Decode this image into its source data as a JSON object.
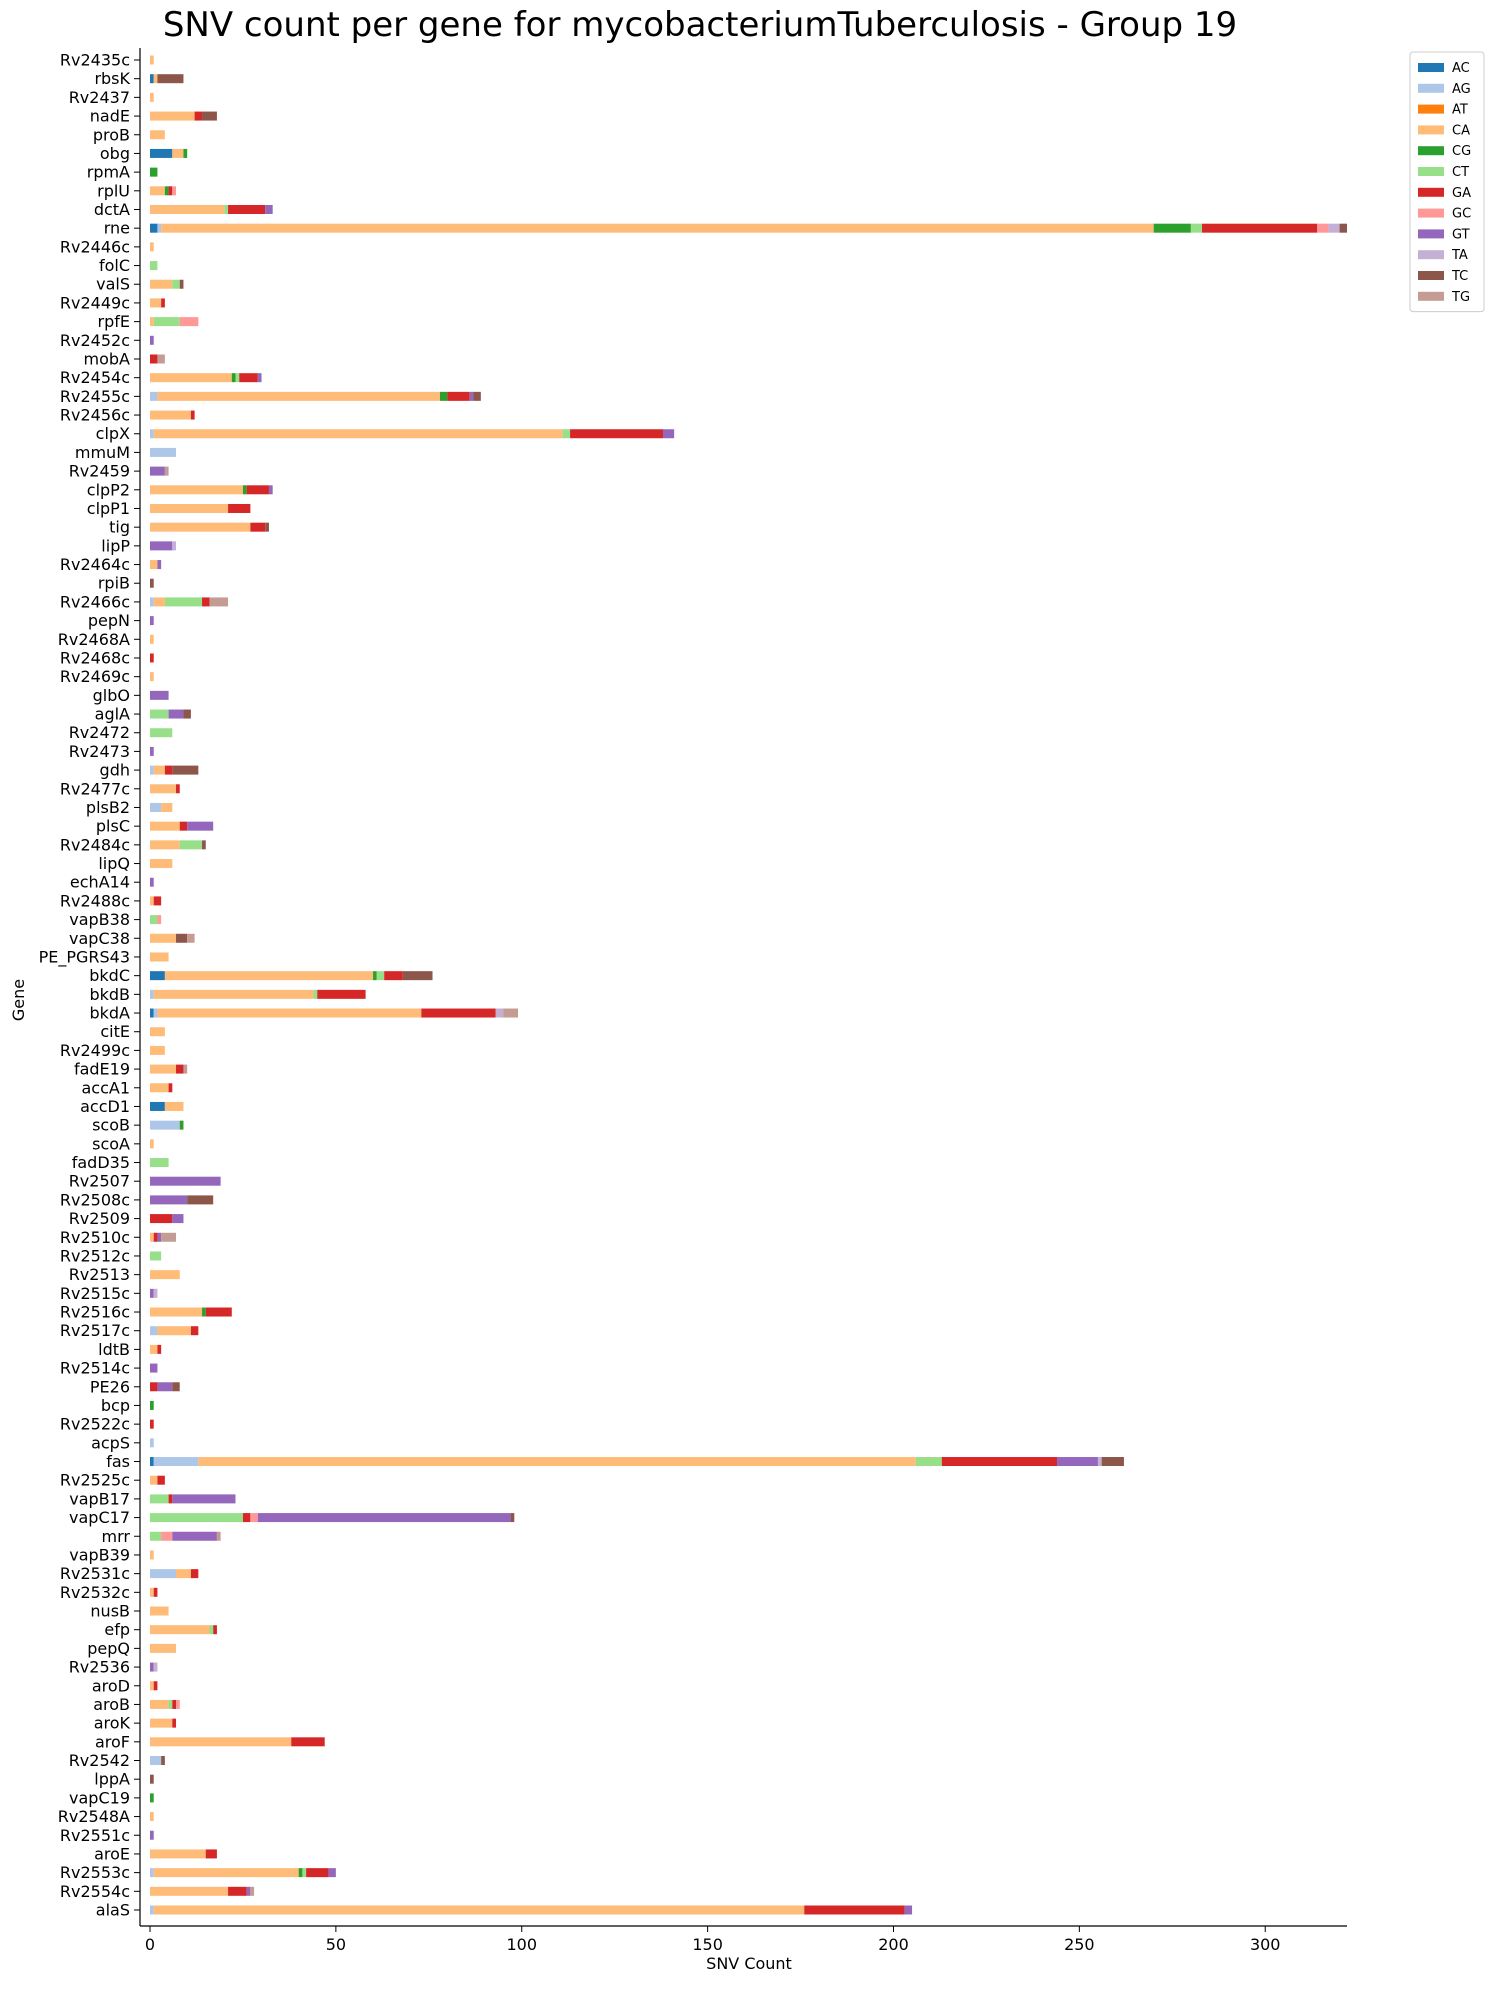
{
  "chart_data": {
    "type": "bar",
    "orientation": "horizontal",
    "stacked": true,
    "title": "SNV count per gene for mycobacteriumTuberculosis - Group 19",
    "xlabel": "SNV Count",
    "ylabel": "Gene",
    "xlim": [
      0,
      322
    ],
    "xticks": [
      0,
      50,
      100,
      150,
      200,
      250,
      300
    ],
    "legend_position": "top-right outside",
    "grid": false,
    "series_names": [
      "AC",
      "AG",
      "AT",
      "CA",
      "CG",
      "CT",
      "GA",
      "GC",
      "GT",
      "TA",
      "TC",
      "TG"
    ],
    "series_colors": {
      "AC": "#1f77b4",
      "AG": "#aec7e8",
      "AT": "#ff7f0e",
      "CA": "#ffbb78",
      "CG": "#2ca02c",
      "CT": "#98df8a",
      "GA": "#d62728",
      "GC": "#ff9896",
      "GT": "#9467bd",
      "TA": "#c5b0d5",
      "TC": "#8c564b",
      "TG": "#c49c94"
    },
    "genes": [
      {
        "gene": "Rv2435c",
        "counts": {
          "CA": 1
        }
      },
      {
        "gene": "rbsK",
        "counts": {
          "AC": 1,
          "CA": 1,
          "TC": 7
        }
      },
      {
        "gene": "Rv2437",
        "counts": {
          "CA": 1
        }
      },
      {
        "gene": "nadE",
        "counts": {
          "CA": 12,
          "GA": 2,
          "TC": 4
        }
      },
      {
        "gene": "proB",
        "counts": {
          "CA": 4
        }
      },
      {
        "gene": "obg",
        "counts": {
          "AC": 6,
          "CA": 3,
          "CG": 1
        }
      },
      {
        "gene": "rpmA",
        "counts": {
          "CG": 2
        }
      },
      {
        "gene": "rplU",
        "counts": {
          "CA": 4,
          "CG": 1,
          "GA": 1,
          "GC": 1
        }
      },
      {
        "gene": "dctA",
        "counts": {
          "CA": 20,
          "CT": 1,
          "GA": 10,
          "GT": 2
        }
      },
      {
        "gene": "rne",
        "counts": {
          "AC": 2,
          "AG": 1,
          "CA": 267,
          "CG": 10,
          "CT": 3,
          "GA": 31,
          "GC": 3,
          "TA": 3,
          "TC": 2
        }
      },
      {
        "gene": "Rv2446c",
        "counts": {
          "CA": 1
        }
      },
      {
        "gene": "folC",
        "counts": {
          "CT": 2
        }
      },
      {
        "gene": "valS",
        "counts": {
          "CA": 6,
          "CT": 2,
          "TC": 1
        }
      },
      {
        "gene": "Rv2449c",
        "counts": {
          "CA": 3,
          "GA": 1
        }
      },
      {
        "gene": "rpfE",
        "counts": {
          "CA": 1,
          "CT": 7,
          "GC": 5
        }
      },
      {
        "gene": "Rv2452c",
        "counts": {
          "GT": 1
        }
      },
      {
        "gene": "mobA",
        "counts": {
          "TG": 2,
          "GA": 2
        }
      },
      {
        "gene": "Rv2454c",
        "counts": {
          "CA": 22,
          "CG": 1,
          "CT": 1,
          "GA": 5,
          "GT": 1
        }
      },
      {
        "gene": "Rv2455c",
        "counts": {
          "AG": 2,
          "CA": 76,
          "CG": 2,
          "GA": 6,
          "GT": 1,
          "TC": 2
        }
      },
      {
        "gene": "Rv2456c",
        "counts": {
          "CA": 11,
          "GA": 1
        }
      },
      {
        "gene": "clpX",
        "counts": {
          "AG": 1,
          "CA": 110,
          "CT": 2,
          "GA": 25,
          "GT": 3
        }
      },
      {
        "gene": "mmuM",
        "counts": {
          "AG": 7
        }
      },
      {
        "gene": "Rv2459",
        "counts": {
          "TG": 1,
          "GT": 4
        }
      },
      {
        "gene": "clpP2",
        "counts": {
          "CA": 25,
          "CG": 1,
          "GA": 6,
          "GT": 1
        }
      },
      {
        "gene": "clpP1",
        "counts": {
          "CA": 21,
          "GA": 6
        }
      },
      {
        "gene": "tig",
        "counts": {
          "CA": 27,
          "GA": 4,
          "TC": 1
        }
      },
      {
        "gene": "lipP",
        "counts": {
          "TA": 1,
          "GT": 6
        }
      },
      {
        "gene": "Rv2464c",
        "counts": {
          "CA": 2,
          "GT": 1
        }
      },
      {
        "gene": "rpiB",
        "counts": {
          "TC": 1
        }
      },
      {
        "gene": "Rv2466c",
        "counts": {
          "AG": 1,
          "CA": 3,
          "CT": 10,
          "GA": 2,
          "TG": 5
        }
      },
      {
        "gene": "pepN",
        "counts": {
          "GT": 1
        }
      },
      {
        "gene": "Rv2468A",
        "counts": {
          "CA": 1
        }
      },
      {
        "gene": "Rv2468c",
        "counts": {
          "GA": 1
        }
      },
      {
        "gene": "Rv2469c",
        "counts": {
          "CA": 1
        }
      },
      {
        "gene": "glbO",
        "counts": {
          "GT": 5
        }
      },
      {
        "gene": "aglA",
        "counts": {
          "CT": 5,
          "GT": 4,
          "TC": 2
        }
      },
      {
        "gene": "Rv2472",
        "counts": {
          "CT": 6
        }
      },
      {
        "gene": "Rv2473",
        "counts": {
          "GT": 1
        }
      },
      {
        "gene": "gdh",
        "counts": {
          "AG": 1,
          "CA": 3,
          "GA": 2,
          "TC": 7
        }
      },
      {
        "gene": "Rv2477c",
        "counts": {
          "CA": 7,
          "GA": 1
        }
      },
      {
        "gene": "plsB2",
        "counts": {
          "AG": 3,
          "CA": 3
        }
      },
      {
        "gene": "plsC",
        "counts": {
          "CA": 8,
          "GA": 2,
          "GT": 7
        }
      },
      {
        "gene": "Rv2484c",
        "counts": {
          "CA": 8,
          "CT": 6,
          "TC": 1
        }
      },
      {
        "gene": "lipQ",
        "counts": {
          "CA": 6
        }
      },
      {
        "gene": "echA14",
        "counts": {
          "GT": 1
        }
      },
      {
        "gene": "Rv2488c",
        "counts": {
          "CA": 1,
          "GA": 2
        }
      },
      {
        "gene": "vapB38",
        "counts": {
          "CT": 2,
          "GC": 1
        }
      },
      {
        "gene": "vapC38",
        "counts": {
          "CA": 7,
          "TC": 3,
          "TG": 2
        }
      },
      {
        "gene": "PE_PGRS43",
        "counts": {
          "CA": 5
        }
      },
      {
        "gene": "bkdC",
        "counts": {
          "AC": 4,
          "CA": 56,
          "CG": 1,
          "CT": 2,
          "GA": 5,
          "TC": 8
        }
      },
      {
        "gene": "bkdB",
        "counts": {
          "AG": 1,
          "CA": 43,
          "CT": 1,
          "GA": 13
        }
      },
      {
        "gene": "bkdA",
        "counts": {
          "AC": 1,
          "AG": 1,
          "CA": 71,
          "GA": 20,
          "TA": 2,
          "TG": 4
        }
      },
      {
        "gene": "citE",
        "counts": {
          "CA": 4
        }
      },
      {
        "gene": "Rv2499c",
        "counts": {
          "CA": 4
        }
      },
      {
        "gene": "fadE19",
        "counts": {
          "CA": 7,
          "GA": 2,
          "TG": 1
        }
      },
      {
        "gene": "accA1",
        "counts": {
          "CA": 5,
          "GA": 1
        }
      },
      {
        "gene": "accD1",
        "counts": {
          "AC": 4,
          "CA": 5
        }
      },
      {
        "gene": "scoB",
        "counts": {
          "AG": 8,
          "CG": 1
        }
      },
      {
        "gene": "scoA",
        "counts": {
          "CA": 1
        }
      },
      {
        "gene": "fadD35",
        "counts": {
          "CT": 5
        }
      },
      {
        "gene": "Rv2507",
        "counts": {
          "GT": 19
        }
      },
      {
        "gene": "Rv2508c",
        "counts": {
          "GT": 10,
          "TC": 7
        }
      },
      {
        "gene": "Rv2509",
        "counts": {
          "GA": 6,
          "GT": 3
        }
      },
      {
        "gene": "Rv2510c",
        "counts": {
          "CA": 1,
          "GA": 1,
          "GT": 1,
          "TG": 4
        }
      },
      {
        "gene": "Rv2512c",
        "counts": {
          "CT": 3
        }
      },
      {
        "gene": "Rv2513",
        "counts": {
          "CA": 8
        }
      },
      {
        "gene": "Rv2515c",
        "counts": {
          "GT": 1,
          "TA": 1
        }
      },
      {
        "gene": "Rv2516c",
        "counts": {
          "CA": 14,
          "CG": 1,
          "GA": 7
        }
      },
      {
        "gene": "Rv2517c",
        "counts": {
          "AG": 2,
          "CA": 9,
          "GA": 2
        }
      },
      {
        "gene": "ldtB",
        "counts": {
          "CA": 2,
          "GA": 1
        }
      },
      {
        "gene": "Rv2514c",
        "counts": {
          "GT": 2
        }
      },
      {
        "gene": "PE26",
        "counts": {
          "GA": 2,
          "GT": 4,
          "TC": 2
        }
      },
      {
        "gene": "bcp",
        "counts": {
          "CG": 1
        }
      },
      {
        "gene": "Rv2522c",
        "counts": {
          "GA": 1
        }
      },
      {
        "gene": "acpS",
        "counts": {
          "AG": 1
        }
      },
      {
        "gene": "fas",
        "counts": {
          "AC": 1,
          "AG": 12,
          "CA": 193,
          "CT": 7,
          "GA": 31,
          "GT": 11,
          "TA": 1,
          "TC": 6
        }
      },
      {
        "gene": "Rv2525c",
        "counts": {
          "CA": 2,
          "GA": 2
        }
      },
      {
        "gene": "vapB17",
        "counts": {
          "CT": 5,
          "GA": 1,
          "GT": 17
        }
      },
      {
        "gene": "vapC17",
        "counts": {
          "CT": 25,
          "GA": 2,
          "GC": 2,
          "GT": 68,
          "TC": 1
        }
      },
      {
        "gene": "mrr",
        "counts": {
          "CT": 3,
          "GC": 3,
          "GT": 12,
          "TG": 1
        }
      },
      {
        "gene": "vapB39",
        "counts": {
          "CA": 1
        }
      },
      {
        "gene": "Rv2531c",
        "counts": {
          "AG": 7,
          "CA": 4,
          "GA": 2
        }
      },
      {
        "gene": "Rv2532c",
        "counts": {
          "CA": 1,
          "GA": 1
        }
      },
      {
        "gene": "nusB",
        "counts": {
          "CA": 5
        }
      },
      {
        "gene": "efp",
        "counts": {
          "CA": 16,
          "CT": 1,
          "GA": 1
        }
      },
      {
        "gene": "pepQ",
        "counts": {
          "CA": 7
        }
      },
      {
        "gene": "Rv2536",
        "counts": {
          "TA": 1,
          "GT": 1
        }
      },
      {
        "gene": "aroD",
        "counts": {
          "CA": 1,
          "GA": 1
        }
      },
      {
        "gene": "aroB",
        "counts": {
          "CA": 5,
          "CT": 1,
          "GA": 1,
          "GC": 1
        }
      },
      {
        "gene": "aroK",
        "counts": {
          "CA": 6,
          "GA": 1
        }
      },
      {
        "gene": "aroF",
        "counts": {
          "CA": 38,
          "GA": 9
        }
      },
      {
        "gene": "Rv2542",
        "counts": {
          "AG": 3,
          "TC": 1
        }
      },
      {
        "gene": "lppA",
        "counts": {
          "TC": 1
        }
      },
      {
        "gene": "vapC19",
        "counts": {
          "CG": 1
        }
      },
      {
        "gene": "Rv2548A",
        "counts": {
          "CA": 1
        }
      },
      {
        "gene": "Rv2551c",
        "counts": {
          "GT": 1
        }
      },
      {
        "gene": "aroE",
        "counts": {
          "CA": 15,
          "GA": 3
        }
      },
      {
        "gene": "Rv2553c",
        "counts": {
          "AG": 1,
          "CA": 39,
          "CT": 1,
          "CG": 1,
          "GA": 6,
          "GT": 2
        }
      },
      {
        "gene": "Rv2554c",
        "counts": {
          "CA": 21,
          "GA": 5,
          "GT": 1,
          "TG": 1
        }
      },
      {
        "gene": "alaS",
        "counts": {
          "AG": 1,
          "CA": 175,
          "GA": 27,
          "GT": 2
        }
      }
    ]
  }
}
